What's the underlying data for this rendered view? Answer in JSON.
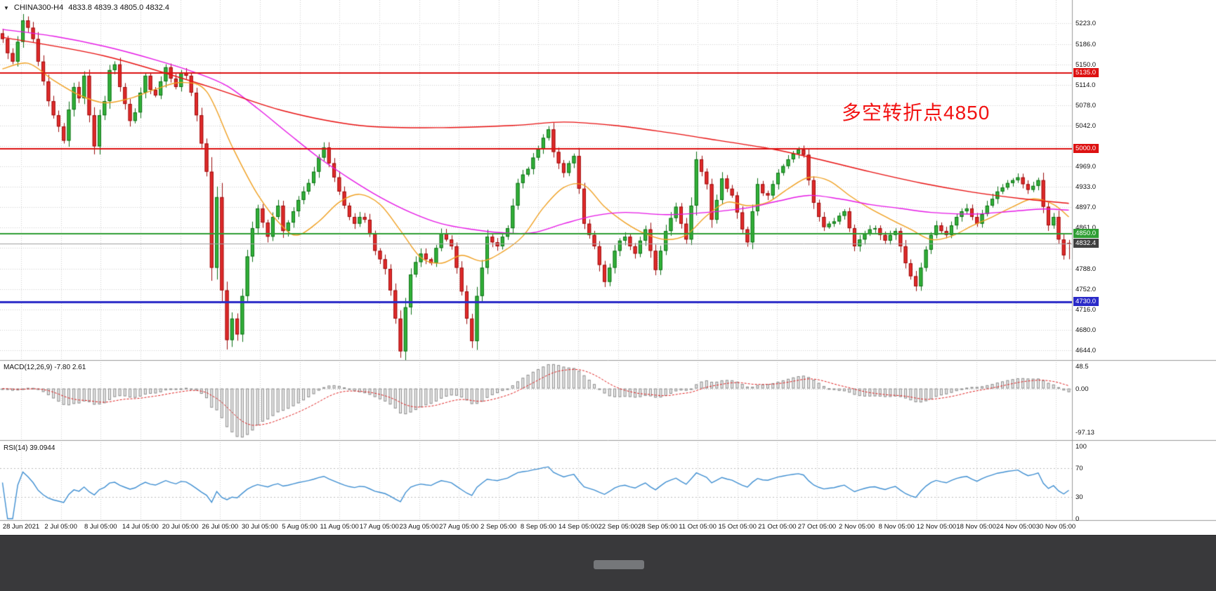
{
  "header": {
    "marker": "▼",
    "symbol_tf": "CHINA300-H4",
    "ohlc": "4833.8 4839.3 4805.0 4832.4"
  },
  "annotation": {
    "text": "多空转折点4850",
    "color": "#f21212"
  },
  "panels": {
    "macd": {
      "label": "MACD(12,26,9) -7.80 2.61",
      "scale": [
        {
          "label": "48.5",
          "value": 48.5
        },
        {
          "label": "0.00",
          "value": 0
        },
        {
          "label": "-97.13",
          "value": -97.13
        }
      ]
    },
    "rsi": {
      "label": "RSI(14) 39.0944",
      "scale": [
        {
          "label": "100",
          "value": 100
        },
        {
          "label": "70",
          "value": 70
        },
        {
          "label": "30",
          "value": 30
        },
        {
          "label": "0",
          "value": 0
        }
      ],
      "levels": [
        70,
        30
      ]
    }
  },
  "chart_data": {
    "type": "candlestick",
    "symbol": "CHINA300",
    "timeframe": "H4",
    "title": "CHINA300-H4",
    "bars": 210,
    "current_bar": {
      "open": 4833.8,
      "high": 4839.3,
      "low": 4805.0,
      "close": 4832.4
    },
    "y_range": [
      4629,
      5233
    ],
    "y_ticks": [
      5223.0,
      5186.0,
      5150.0,
      5114.0,
      5078.0,
      5042.0,
      5006.0,
      4969.0,
      4933.0,
      4897.0,
      4861.0,
      4825.0,
      4788.0,
      4752.0,
      4716.0,
      4680.0,
      4644.0
    ],
    "x_labels": [
      "28 Jun 2021",
      "2 Jul 05:00",
      "8 Jul 05:00",
      "14 Jul 05:00",
      "20 Jul 05:00",
      "26 Jul 05:00",
      "30 Jul 05:00",
      "5 Aug 05:00",
      "11 Aug 05:00",
      "17 Aug 05:00",
      "23 Aug 05:00",
      "27 Aug 05:00",
      "2 Sep 05:00",
      "8 Sep 05:00",
      "14 Sep 05:00",
      "22 Sep 05:00",
      "28 Sep 05:00",
      "11 Oct 05:00",
      "15 Oct 05:00",
      "21 Oct 05:00",
      "27 Oct 05:00",
      "2 Nov 05:00",
      "8 Nov 05:00",
      "12 Nov 05:00",
      "18 Nov 05:00",
      "24 Nov 05:00",
      "30 Nov 05:00"
    ],
    "closes": [
      5195,
      5170,
      5155,
      5190,
      5228,
      5215,
      5195,
      5155,
      5120,
      5085,
      5060,
      5040,
      5015,
      5070,
      5110,
      5090,
      5130,
      5060,
      5005,
      5060,
      5085,
      5140,
      5150,
      5110,
      5080,
      5050,
      5065,
      5100,
      5130,
      5105,
      5095,
      5120,
      5145,
      5125,
      5110,
      5135,
      5130,
      5100,
      5060,
      5010,
      4960,
      4790,
      4915,
      4750,
      4662,
      4700,
      4672,
      4740,
      4810,
      4860,
      4895,
      4870,
      4845,
      4880,
      4900,
      4855,
      4870,
      4890,
      4910,
      4925,
      4940,
      4960,
      4985,
      5003,
      4975,
      4950,
      4925,
      4900,
      4880,
      4868,
      4880,
      4875,
      4850,
      4820,
      4805,
      4788,
      4750,
      4700,
      4642,
      4720,
      4778,
      4800,
      4815,
      4805,
      4798,
      4825,
      4850,
      4840,
      4828,
      4790,
      4748,
      4700,
      4660,
      4740,
      4790,
      4845,
      4835,
      4828,
      4845,
      4860,
      4900,
      4940,
      4955,
      4965,
      4985,
      5000,
      5020,
      5035,
      4995,
      4975,
      4958,
      4975,
      4988,
      4930,
      4868,
      4848,
      4828,
      4795,
      4765,
      4790,
      4820,
      4838,
      4845,
      4828,
      4815,
      4838,
      4858,
      4820,
      4786,
      4820,
      4855,
      4878,
      4898,
      4868,
      4840,
      4900,
      4982,
      4960,
      4938,
      4875,
      4910,
      4948,
      4930,
      4918,
      4888,
      4858,
      4835,
      4890,
      4938,
      4922,
      4918,
      4938,
      4958,
      4970,
      4982,
      4992,
      4999,
      4990,
      4945,
      4905,
      4880,
      4862,
      4868,
      4872,
      4882,
      4890,
      4860,
      4828,
      4840,
      4850,
      4858,
      4860,
      4848,
      4838,
      4848,
      4855,
      4828,
      4798,
      4775,
      4757,
      4790,
      4822,
      4848,
      4865,
      4855,
      4848,
      4865,
      4880,
      4890,
      4895,
      4880,
      4868,
      4885,
      4900,
      4912,
      4925,
      4932,
      4940,
      4945,
      4950,
      4938,
      4928,
      4935,
      4945,
      4898,
      4865,
      4880,
      4840,
      4812,
      4832.4
    ],
    "horizontal_lines": [
      {
        "value": 5135.0,
        "label": "5135.0",
        "color": "#dd1111",
        "thickness": 2
      },
      {
        "value": 5000.0,
        "label": "5000.0",
        "color": "#dd1111",
        "thickness": 2
      },
      {
        "value": 4850.0,
        "label": "4850.0",
        "color": "#2f9e34",
        "thickness": 2
      },
      {
        "value": 4730.0,
        "label": "4730.0",
        "color": "#2a2ac8",
        "thickness": 3
      }
    ],
    "current_price_line": {
      "value": 4832.4,
      "label": "4832.4",
      "line_color": "#a0a0a0",
      "badge_color": "#404040"
    },
    "moving_averages": [
      {
        "name": "ma-fast-orange",
        "color": "#f0a021",
        "points": [
          [
            0,
            5142
          ],
          [
            5,
            5152
          ],
          [
            10,
            5122
          ],
          [
            15,
            5096
          ],
          [
            20,
            5082
          ],
          [
            25,
            5090
          ],
          [
            30,
            5106
          ],
          [
            35,
            5118
          ],
          [
            40,
            5102
          ],
          [
            45,
            5005
          ],
          [
            50,
            4920
          ],
          [
            55,
            4862
          ],
          [
            58,
            4848
          ],
          [
            62,
            4872
          ],
          [
            66,
            4906
          ],
          [
            70,
            4920
          ],
          [
            74,
            4902
          ],
          [
            78,
            4856
          ],
          [
            82,
            4808
          ],
          [
            86,
            4798
          ],
          [
            90,
            4812
          ],
          [
            94,
            4802
          ],
          [
            98,
            4818
          ],
          [
            102,
            4846
          ],
          [
            106,
            4896
          ],
          [
            110,
            4932
          ],
          [
            114,
            4936
          ],
          [
            118,
            4898
          ],
          [
            122,
            4870
          ],
          [
            126,
            4850
          ],
          [
            130,
            4840
          ],
          [
            134,
            4848
          ],
          [
            138,
            4882
          ],
          [
            142,
            4906
          ],
          [
            146,
            4900
          ],
          [
            150,
            4906
          ],
          [
            154,
            4930
          ],
          [
            158,
            4950
          ],
          [
            162,
            4944
          ],
          [
            166,
            4918
          ],
          [
            170,
            4895
          ],
          [
            174,
            4876
          ],
          [
            178,
            4858
          ],
          [
            182,
            4840
          ],
          [
            186,
            4846
          ],
          [
            190,
            4864
          ],
          [
            194,
            4880
          ],
          [
            198,
            4898
          ],
          [
            202,
            4912
          ],
          [
            206,
            4902
          ],
          [
            209,
            4880
          ]
        ]
      },
      {
        "name": "ma-medium-magenta",
        "color": "#e619e6",
        "points": [
          [
            0,
            5212
          ],
          [
            10,
            5200
          ],
          [
            20,
            5182
          ],
          [
            30,
            5158
          ],
          [
            38,
            5135
          ],
          [
            44,
            5112
          ],
          [
            50,
            5072
          ],
          [
            56,
            5028
          ],
          [
            62,
            4985
          ],
          [
            68,
            4948
          ],
          [
            74,
            4915
          ],
          [
            80,
            4888
          ],
          [
            86,
            4868
          ],
          [
            92,
            4858
          ],
          [
            98,
            4852
          ],
          [
            104,
            4852
          ],
          [
            110,
            4868
          ],
          [
            116,
            4882
          ],
          [
            122,
            4888
          ],
          [
            130,
            4884
          ],
          [
            138,
            4888
          ],
          [
            146,
            4896
          ],
          [
            152,
            4908
          ],
          [
            158,
            4918
          ],
          [
            164,
            4912
          ],
          [
            170,
            4902
          ],
          [
            176,
            4895
          ],
          [
            182,
            4888
          ],
          [
            190,
            4885
          ],
          [
            198,
            4890
          ],
          [
            204,
            4894
          ],
          [
            209,
            4892
          ]
        ]
      },
      {
        "name": "ma-slow-red",
        "color": "#e81010",
        "points": [
          [
            0,
            5198
          ],
          [
            20,
            5165
          ],
          [
            40,
            5112
          ],
          [
            55,
            5068
          ],
          [
            70,
            5042
          ],
          [
            85,
            5038
          ],
          [
            100,
            5042
          ],
          [
            110,
            5048
          ],
          [
            120,
            5042
          ],
          [
            130,
            5030
          ],
          [
            140,
            5016
          ],
          [
            151,
            5000
          ],
          [
            160,
            4982
          ],
          [
            170,
            4960
          ],
          [
            180,
            4940
          ],
          [
            190,
            4924
          ],
          [
            200,
            4912
          ],
          [
            209,
            4904
          ]
        ]
      }
    ],
    "indicators": {
      "macd": {
        "fast": 12,
        "slow": 26,
        "signal": 9,
        "current_main": -7.8,
        "current_signal": 2.61,
        "display_range": [
          -112,
          58
        ]
      },
      "rsi": {
        "period": 14,
        "current": 39.0944
      }
    }
  },
  "colors": {
    "background": "#ffffff",
    "grid": "#d2d2d2",
    "separator": "#9a9a9a",
    "bull_fill": "#33b43a",
    "bull_border": "#0e6f16",
    "bear_fill": "#e32b2b",
    "bear_border": "#9c0d0d",
    "macd_hist_fill": "#ececec",
    "macd_hist_stroke": "#8d8d8d",
    "macd_signal": "#e02020",
    "rsi_line": "#3f8fd2"
  },
  "bottom_bar": {
    "background": "#39393b"
  }
}
